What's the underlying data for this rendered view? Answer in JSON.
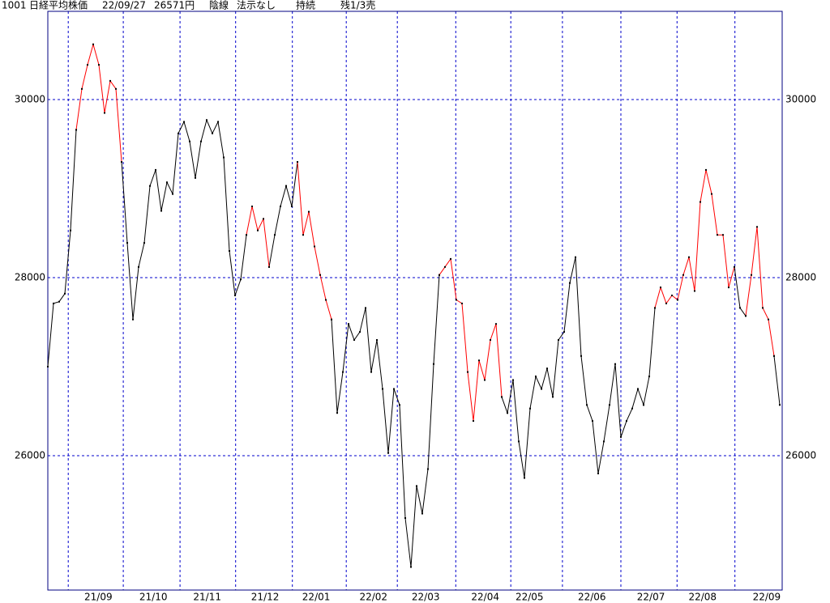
{
  "chart_data": {
    "type": "line",
    "title": [
      "1001",
      "日経平均株価",
      "22/09/27",
      "26571円",
      "陰線",
      "法示なし",
      "持続",
      "残1/3売"
    ],
    "xlim": [
      0,
      129.43
    ],
    "ylim": [
      24491,
      30991
    ],
    "yticks": [
      26000,
      28000,
      30000
    ],
    "xticks": [
      {
        "value": 8.9,
        "label": "21/09"
      },
      {
        "value": 18.6,
        "label": "21/10"
      },
      {
        "value": 28.1,
        "label": "21/11"
      },
      {
        "value": 38.3,
        "label": "21/12"
      },
      {
        "value": 47.3,
        "label": "22/01"
      },
      {
        "value": 57.4,
        "label": "22/02"
      },
      {
        "value": 66.6,
        "label": "22/03"
      },
      {
        "value": 77.1,
        "label": "22/04"
      },
      {
        "value": 84.9,
        "label": "22/05"
      },
      {
        "value": 95.9,
        "label": "22/06"
      },
      {
        "value": 106.3,
        "label": "22/07"
      },
      {
        "value": 115.4,
        "label": "22/08"
      },
      {
        "value": 126.7,
        "label": "22/09"
      }
    ],
    "vlines": [
      3.6,
      13.3,
      23.3,
      33.1,
      43.1,
      52.6,
      61.6,
      71.9,
      81.6,
      90.7,
      101,
      110.9,
      121.1
    ],
    "grid": true,
    "series": [
      {
        "color": "#000000",
        "values": [
          27000,
          27710,
          27730,
          27820,
          28530,
          29660,
          null,
          null,
          null,
          null,
          null,
          null,
          null,
          29300,
          28390,
          27530,
          28120,
          28390,
          29030,
          29210,
          28750,
          29070,
          28940,
          29620,
          29750,
          29530,
          29120,
          29530,
          29770,
          29620,
          29750,
          29350,
          28300,
          27800,
          27980,
          28480,
          null,
          null,
          null,
          28120,
          28480,
          28800,
          29030,
          28800,
          29300,
          null,
          null,
          null,
          null,
          null,
          27530,
          26480,
          26940,
          27480,
          27300,
          27390,
          27660,
          26940,
          27300,
          26750,
          26030,
          26750,
          26570,
          25300,
          24750,
          25660,
          25350,
          25850,
          27030,
          28030,
          null,
          null,
          null,
          null,
          null,
          null,
          null,
          null,
          null,
          null,
          26660,
          26480,
          26850,
          26160,
          25750,
          26530,
          26890,
          26750,
          26980,
          26660,
          27300,
          27390,
          27940,
          28230,
          27120,
          26570,
          26390,
          25800,
          26160,
          26570,
          27030,
          26210,
          26390,
          26530,
          26750,
          26570,
          26890,
          27660,
          null,
          null,
          null,
          null,
          null,
          null,
          null,
          null,
          null,
          null,
          null,
          null,
          null,
          28120,
          27660,
          27570,
          null,
          null,
          null,
          null,
          27120,
          26570
        ]
      },
      {
        "color": "#ff0000",
        "values": [
          null,
          null,
          null,
          null,
          null,
          29660,
          30120,
          30390,
          30620,
          30390,
          29850,
          30210,
          30120,
          29300,
          null,
          null,
          null,
          null,
          null,
          null,
          null,
          null,
          null,
          null,
          null,
          null,
          null,
          null,
          null,
          null,
          null,
          null,
          null,
          null,
          null,
          28480,
          28800,
          28530,
          28660,
          28120,
          null,
          null,
          null,
          null,
          29300,
          28480,
          28740,
          28350,
          28030,
          27750,
          27530,
          null,
          null,
          null,
          null,
          null,
          null,
          null,
          null,
          null,
          null,
          null,
          null,
          null,
          null,
          null,
          null,
          null,
          null,
          28030,
          28120,
          28210,
          27750,
          27710,
          26940,
          26390,
          27070,
          26850,
          27300,
          27480,
          26660,
          null,
          null,
          null,
          null,
          null,
          null,
          null,
          null,
          null,
          null,
          null,
          null,
          null,
          null,
          null,
          null,
          null,
          null,
          null,
          null,
          null,
          null,
          null,
          null,
          null,
          null,
          27660,
          27890,
          27710,
          27800,
          27750,
          28030,
          28230,
          27850,
          28850,
          29210,
          28940,
          28480,
          28480,
          27890,
          28120,
          null,
          27570,
          28030,
          28570,
          27660,
          27530,
          27120,
          null
        ]
      }
    ]
  }
}
